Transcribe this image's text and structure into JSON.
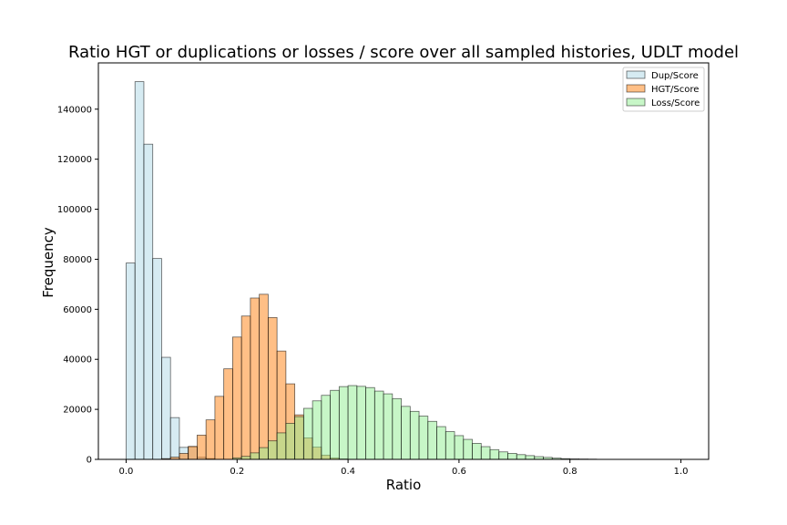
{
  "chart_data": {
    "type": "bar",
    "title": "Ratio HGT or duplications or losses / score over all sampled histories, UDLT model",
    "xlabel": "Ratio",
    "ylabel": "Frequency",
    "xlim": [
      -0.05,
      1.05
    ],
    "ylim": [
      0,
      158500
    ],
    "xticks": [
      0.0,
      0.2,
      0.4,
      0.6,
      0.8,
      1.0
    ],
    "xtick_labels": [
      "0.0",
      "0.2",
      "0.4",
      "0.6",
      "0.8",
      "1.0"
    ],
    "yticks": [
      0,
      20000,
      40000,
      60000,
      80000,
      100000,
      120000,
      140000
    ],
    "ytick_labels": [
      "0",
      "20000",
      "40000",
      "60000",
      "80000",
      "100000",
      "120000",
      "140000"
    ],
    "bin_width": 0.016,
    "legend_position": "top-right",
    "series": [
      {
        "name": "Dup/Score",
        "color": "#add8e6",
        "alpha": 0.5,
        "bin_start": 0.0,
        "values": [
          78500,
          151000,
          126000,
          80300,
          40800,
          16700,
          4800,
          5000,
          800,
          300
        ]
      },
      {
        "name": "HGT/Score",
        "color": "#ff7f0e",
        "alpha": 0.5,
        "bin_start": 0.064,
        "values": [
          300,
          900,
          2400,
          5200,
          9700,
          15800,
          25200,
          36200,
          48900,
          57300,
          64500,
          66000,
          56700,
          43300,
          30200,
          17800,
          8600,
          4900,
          1700,
          600,
          200
        ]
      },
      {
        "name": "Loss/Score",
        "color": "#90ee90",
        "alpha": 0.5,
        "bin_start": 0.192,
        "values": [
          600,
          1200,
          2600,
          4700,
          7400,
          10600,
          14400,
          17100,
          20400,
          23400,
          25600,
          27600,
          29100,
          29500,
          29200,
          28700,
          27300,
          26200,
          24300,
          21200,
          19200,
          17300,
          15200,
          13100,
          11100,
          9500,
          8000,
          6400,
          5100,
          3900,
          3000,
          2400,
          1900,
          1500,
          1100,
          800,
          500,
          300,
          200,
          150,
          100
        ]
      }
    ]
  }
}
